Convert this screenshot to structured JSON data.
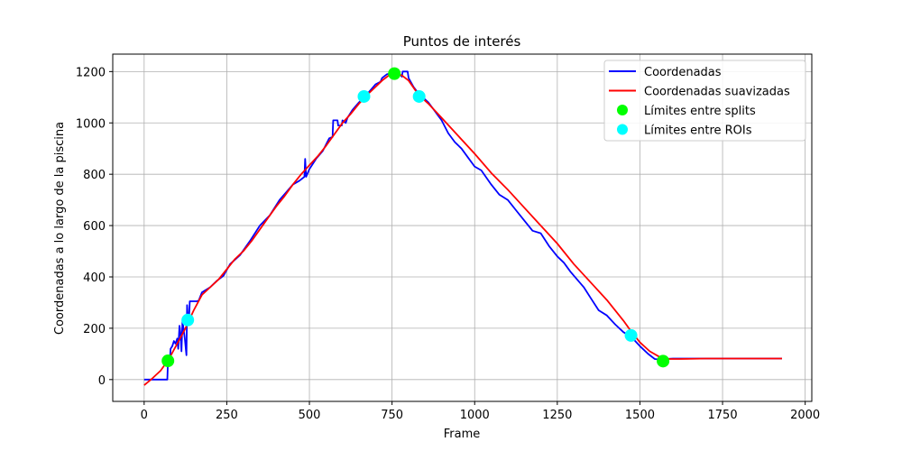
{
  "chart_data": {
    "type": "line",
    "title": "Puntos de interés",
    "xlabel": "Frame",
    "ylabel": "Coordenadas a lo largo de la piscina",
    "xlim": [
      -95,
      2020
    ],
    "ylim": [
      -85,
      1268
    ],
    "xticks": [
      0,
      250,
      500,
      750,
      1000,
      1250,
      1500,
      1750,
      2000
    ],
    "yticks": [
      0,
      200,
      400,
      600,
      800,
      1000,
      1200
    ],
    "grid": true,
    "legend_position": "top-right",
    "series": [
      {
        "name": "Coordenadas",
        "kind": "line",
        "color": "#0000ff",
        "points": [
          [
            0,
            0
          ],
          [
            70,
            0
          ],
          [
            72,
            70
          ],
          [
            78,
            75
          ],
          [
            80,
            120
          ],
          [
            85,
            130
          ],
          [
            90,
            150
          ],
          [
            95,
            140
          ],
          [
            100,
            160
          ],
          [
            103,
            120
          ],
          [
            107,
            210
          ],
          [
            110,
            180
          ],
          [
            113,
            110
          ],
          [
            116,
            230
          ],
          [
            119,
            200
          ],
          [
            123,
            160
          ],
          [
            126,
            120
          ],
          [
            128,
            95
          ],
          [
            130,
            290
          ],
          [
            133,
            230
          ],
          [
            136,
            240
          ],
          [
            138,
            305
          ],
          [
            160,
            305
          ],
          [
            165,
            308
          ],
          [
            175,
            340
          ],
          [
            200,
            360
          ],
          [
            220,
            385
          ],
          [
            240,
            405
          ],
          [
            260,
            450
          ],
          [
            290,
            485
          ],
          [
            320,
            540
          ],
          [
            350,
            600
          ],
          [
            380,
            640
          ],
          [
            410,
            700
          ],
          [
            430,
            730
          ],
          [
            450,
            760
          ],
          [
            470,
            775
          ],
          [
            485,
            790
          ],
          [
            487,
            860
          ],
          [
            490,
            790
          ],
          [
            500,
            820
          ],
          [
            520,
            860
          ],
          [
            540,
            890
          ],
          [
            560,
            940
          ],
          [
            570,
            945
          ],
          [
            572,
            1010
          ],
          [
            585,
            1010
          ],
          [
            587,
            990
          ],
          [
            598,
            990
          ],
          [
            600,
            1010
          ],
          [
            610,
            1000
          ],
          [
            615,
            1020
          ],
          [
            630,
            1050
          ],
          [
            650,
            1080
          ],
          [
            665,
            1100
          ],
          [
            680,
            1120
          ],
          [
            700,
            1150
          ],
          [
            715,
            1160
          ],
          [
            720,
            1175
          ],
          [
            735,
            1190
          ],
          [
            755,
            1195
          ],
          [
            770,
            1195
          ],
          [
            780,
            1180
          ],
          [
            782,
            1200
          ],
          [
            797,
            1200
          ],
          [
            800,
            1175
          ],
          [
            815,
            1140
          ],
          [
            830,
            1115
          ],
          [
            860,
            1080
          ],
          [
            880,
            1045
          ],
          [
            900,
            1010
          ],
          [
            920,
            960
          ],
          [
            940,
            925
          ],
          [
            960,
            900
          ],
          [
            980,
            865
          ],
          [
            1000,
            830
          ],
          [
            1020,
            815
          ],
          [
            1050,
            760
          ],
          [
            1075,
            720
          ],
          [
            1100,
            700
          ],
          [
            1125,
            660
          ],
          [
            1150,
            620
          ],
          [
            1175,
            580
          ],
          [
            1200,
            570
          ],
          [
            1225,
            520
          ],
          [
            1250,
            480
          ],
          [
            1270,
            455
          ],
          [
            1290,
            420
          ],
          [
            1310,
            390
          ],
          [
            1330,
            360
          ],
          [
            1350,
            320
          ],
          [
            1375,
            270
          ],
          [
            1400,
            250
          ],
          [
            1425,
            215
          ],
          [
            1450,
            185
          ],
          [
            1475,
            165
          ],
          [
            1500,
            130
          ],
          [
            1525,
            100
          ],
          [
            1545,
            80
          ],
          [
            1560,
            78
          ],
          [
            1575,
            80
          ],
          [
            1600,
            82
          ],
          [
            1650,
            82
          ],
          [
            1700,
            82
          ],
          [
            1800,
            82
          ],
          [
            1930,
            82
          ]
        ]
      },
      {
        "name": "Coordenadas suavizadas",
        "kind": "line",
        "color": "#ff0000",
        "points": [
          [
            0,
            -22
          ],
          [
            25,
            5
          ],
          [
            50,
            35
          ],
          [
            75,
            80
          ],
          [
            100,
            140
          ],
          [
            125,
            200
          ],
          [
            150,
            270
          ],
          [
            175,
            330
          ],
          [
            200,
            360
          ],
          [
            225,
            390
          ],
          [
            250,
            430
          ],
          [
            275,
            470
          ],
          [
            300,
            500
          ],
          [
            325,
            540
          ],
          [
            350,
            585
          ],
          [
            375,
            630
          ],
          [
            400,
            675
          ],
          [
            425,
            715
          ],
          [
            450,
            760
          ],
          [
            475,
            800
          ],
          [
            500,
            835
          ],
          [
            525,
            870
          ],
          [
            550,
            910
          ],
          [
            575,
            955
          ],
          [
            600,
            1000
          ],
          [
            625,
            1035
          ],
          [
            650,
            1075
          ],
          [
            675,
            1110
          ],
          [
            700,
            1140
          ],
          [
            720,
            1165
          ],
          [
            740,
            1185
          ],
          [
            760,
            1193
          ],
          [
            780,
            1185
          ],
          [
            800,
            1165
          ],
          [
            830,
            1110
          ],
          [
            860,
            1075
          ],
          [
            900,
            1020
          ],
          [
            950,
            950
          ],
          [
            1000,
            880
          ],
          [
            1050,
            805
          ],
          [
            1100,
            740
          ],
          [
            1150,
            670
          ],
          [
            1200,
            600
          ],
          [
            1250,
            530
          ],
          [
            1300,
            450
          ],
          [
            1350,
            380
          ],
          [
            1400,
            310
          ],
          [
            1450,
            230
          ],
          [
            1475,
            185
          ],
          [
            1500,
            145
          ],
          [
            1530,
            110
          ],
          [
            1560,
            88
          ],
          [
            1580,
            80
          ],
          [
            1620,
            80
          ],
          [
            1700,
            82
          ],
          [
            1800,
            82
          ],
          [
            1930,
            82
          ]
        ]
      },
      {
        "name": "Límites entre splits",
        "kind": "scatter",
        "color": "#00ff00",
        "points": [
          [
            72,
            73
          ],
          [
            757,
            1192
          ],
          [
            1570,
            72
          ]
        ]
      },
      {
        "name": "Límites entre ROIs",
        "kind": "scatter",
        "color": "#00ffff",
        "points": [
          [
            132,
            232
          ],
          [
            665,
            1103
          ],
          [
            832,
            1103
          ],
          [
            1473,
            172
          ]
        ]
      }
    ]
  }
}
